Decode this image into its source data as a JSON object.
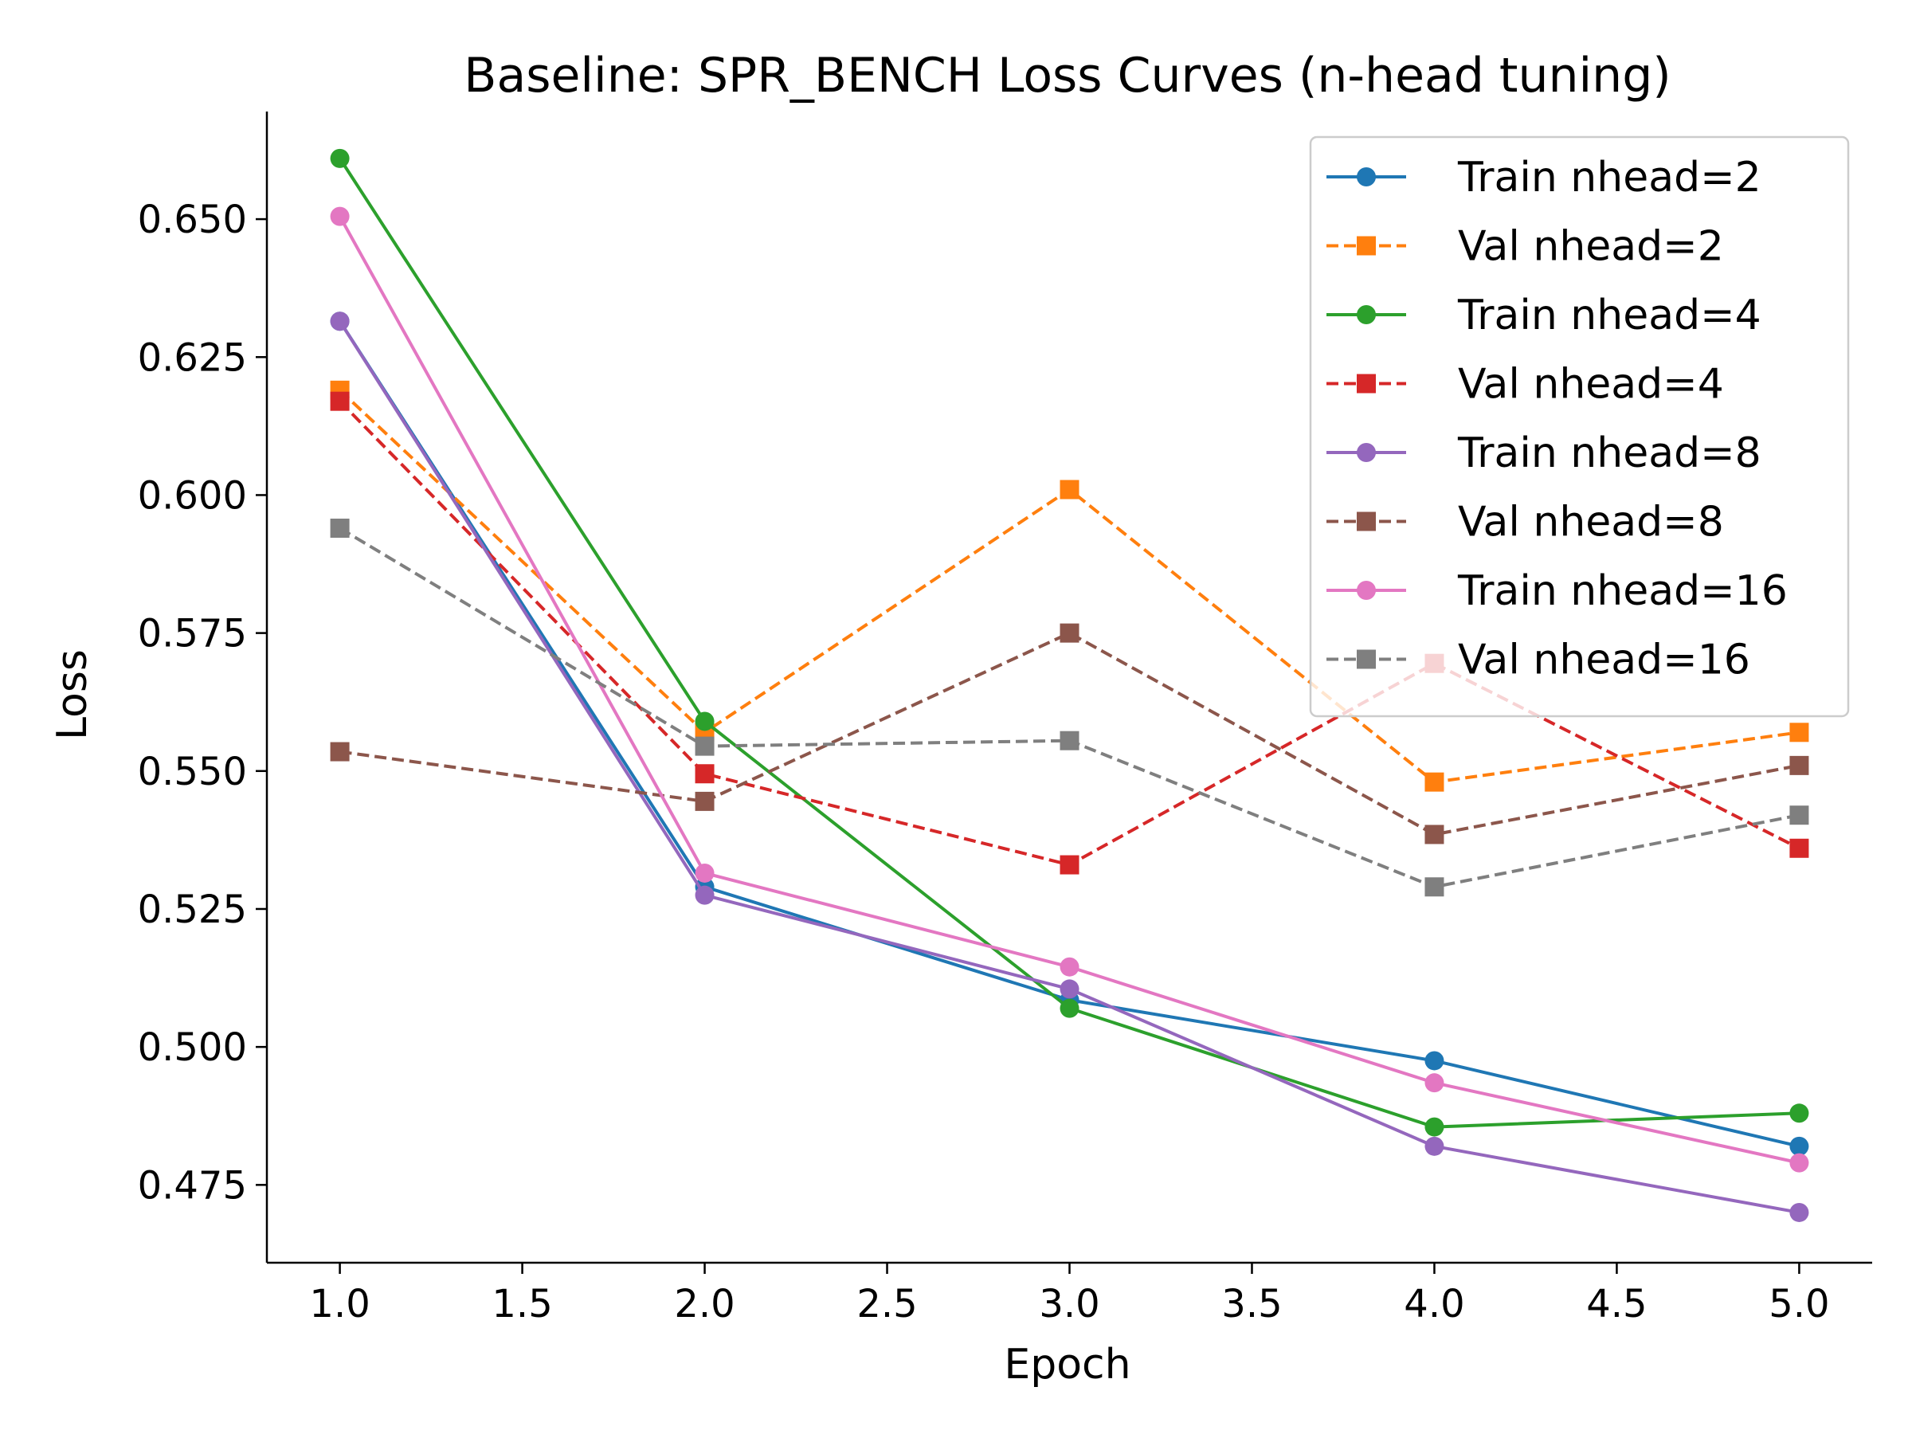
{
  "chart_data": {
    "type": "line",
    "title": "Baseline: SPR_BENCH Loss Curves (n-head tuning)",
    "xlabel": "Epoch",
    "ylabel": "Loss",
    "x": [
      1,
      2,
      3,
      4,
      5
    ],
    "xlim": [
      0.8,
      5.2
    ],
    "ylim": [
      0.4609,
      0.6695
    ],
    "xticks": [
      1.0,
      1.5,
      2.0,
      2.5,
      3.0,
      3.5,
      4.0,
      4.5,
      5.0
    ],
    "xtick_labels": [
      "1.0",
      "1.5",
      "2.0",
      "2.5",
      "3.0",
      "3.5",
      "4.0",
      "4.5",
      "5.0"
    ],
    "yticks": [
      0.475,
      0.5,
      0.525,
      0.55,
      0.575,
      0.6,
      0.625,
      0.65
    ],
    "ytick_labels": [
      "0.475",
      "0.500",
      "0.525",
      "0.550",
      "0.575",
      "0.600",
      "0.625",
      "0.650"
    ],
    "grid": false,
    "legend_position": "top-right",
    "series": [
      {
        "name": "Train nhead=2",
        "color": "#1f77b4",
        "style": "solid",
        "marker": "circle",
        "values": [
          0.6315,
          0.529,
          0.5085,
          0.4975,
          0.482
        ]
      },
      {
        "name": "Val nhead=2",
        "color": "#ff7f0e",
        "style": "dashed",
        "marker": "square",
        "values": [
          0.619,
          0.557,
          0.601,
          0.548,
          0.557
        ]
      },
      {
        "name": "Train nhead=4",
        "color": "#2ca02c",
        "style": "solid",
        "marker": "circle",
        "values": [
          0.661,
          0.559,
          0.507,
          0.4855,
          0.488
        ]
      },
      {
        "name": "Val nhead=4",
        "color": "#d62728",
        "style": "dashed",
        "marker": "square",
        "values": [
          0.617,
          0.5495,
          0.533,
          0.5695,
          0.536
        ]
      },
      {
        "name": "Train nhead=8",
        "color": "#9467bd",
        "style": "solid",
        "marker": "circle",
        "values": [
          0.6315,
          0.5275,
          0.5105,
          0.482,
          0.47
        ]
      },
      {
        "name": "Val nhead=8",
        "color": "#8c564b",
        "style": "dashed",
        "marker": "square",
        "values": [
          0.5535,
          0.5445,
          0.575,
          0.5385,
          0.551
        ]
      },
      {
        "name": "Train nhead=16",
        "color": "#e377c2",
        "style": "solid",
        "marker": "circle",
        "values": [
          0.6505,
          0.5315,
          0.5145,
          0.4935,
          0.479
        ]
      },
      {
        "name": "Val nhead=16",
        "color": "#7f7f7f",
        "style": "dashed",
        "marker": "square",
        "values": [
          0.594,
          0.5545,
          0.5555,
          0.529,
          0.542
        ]
      }
    ]
  }
}
